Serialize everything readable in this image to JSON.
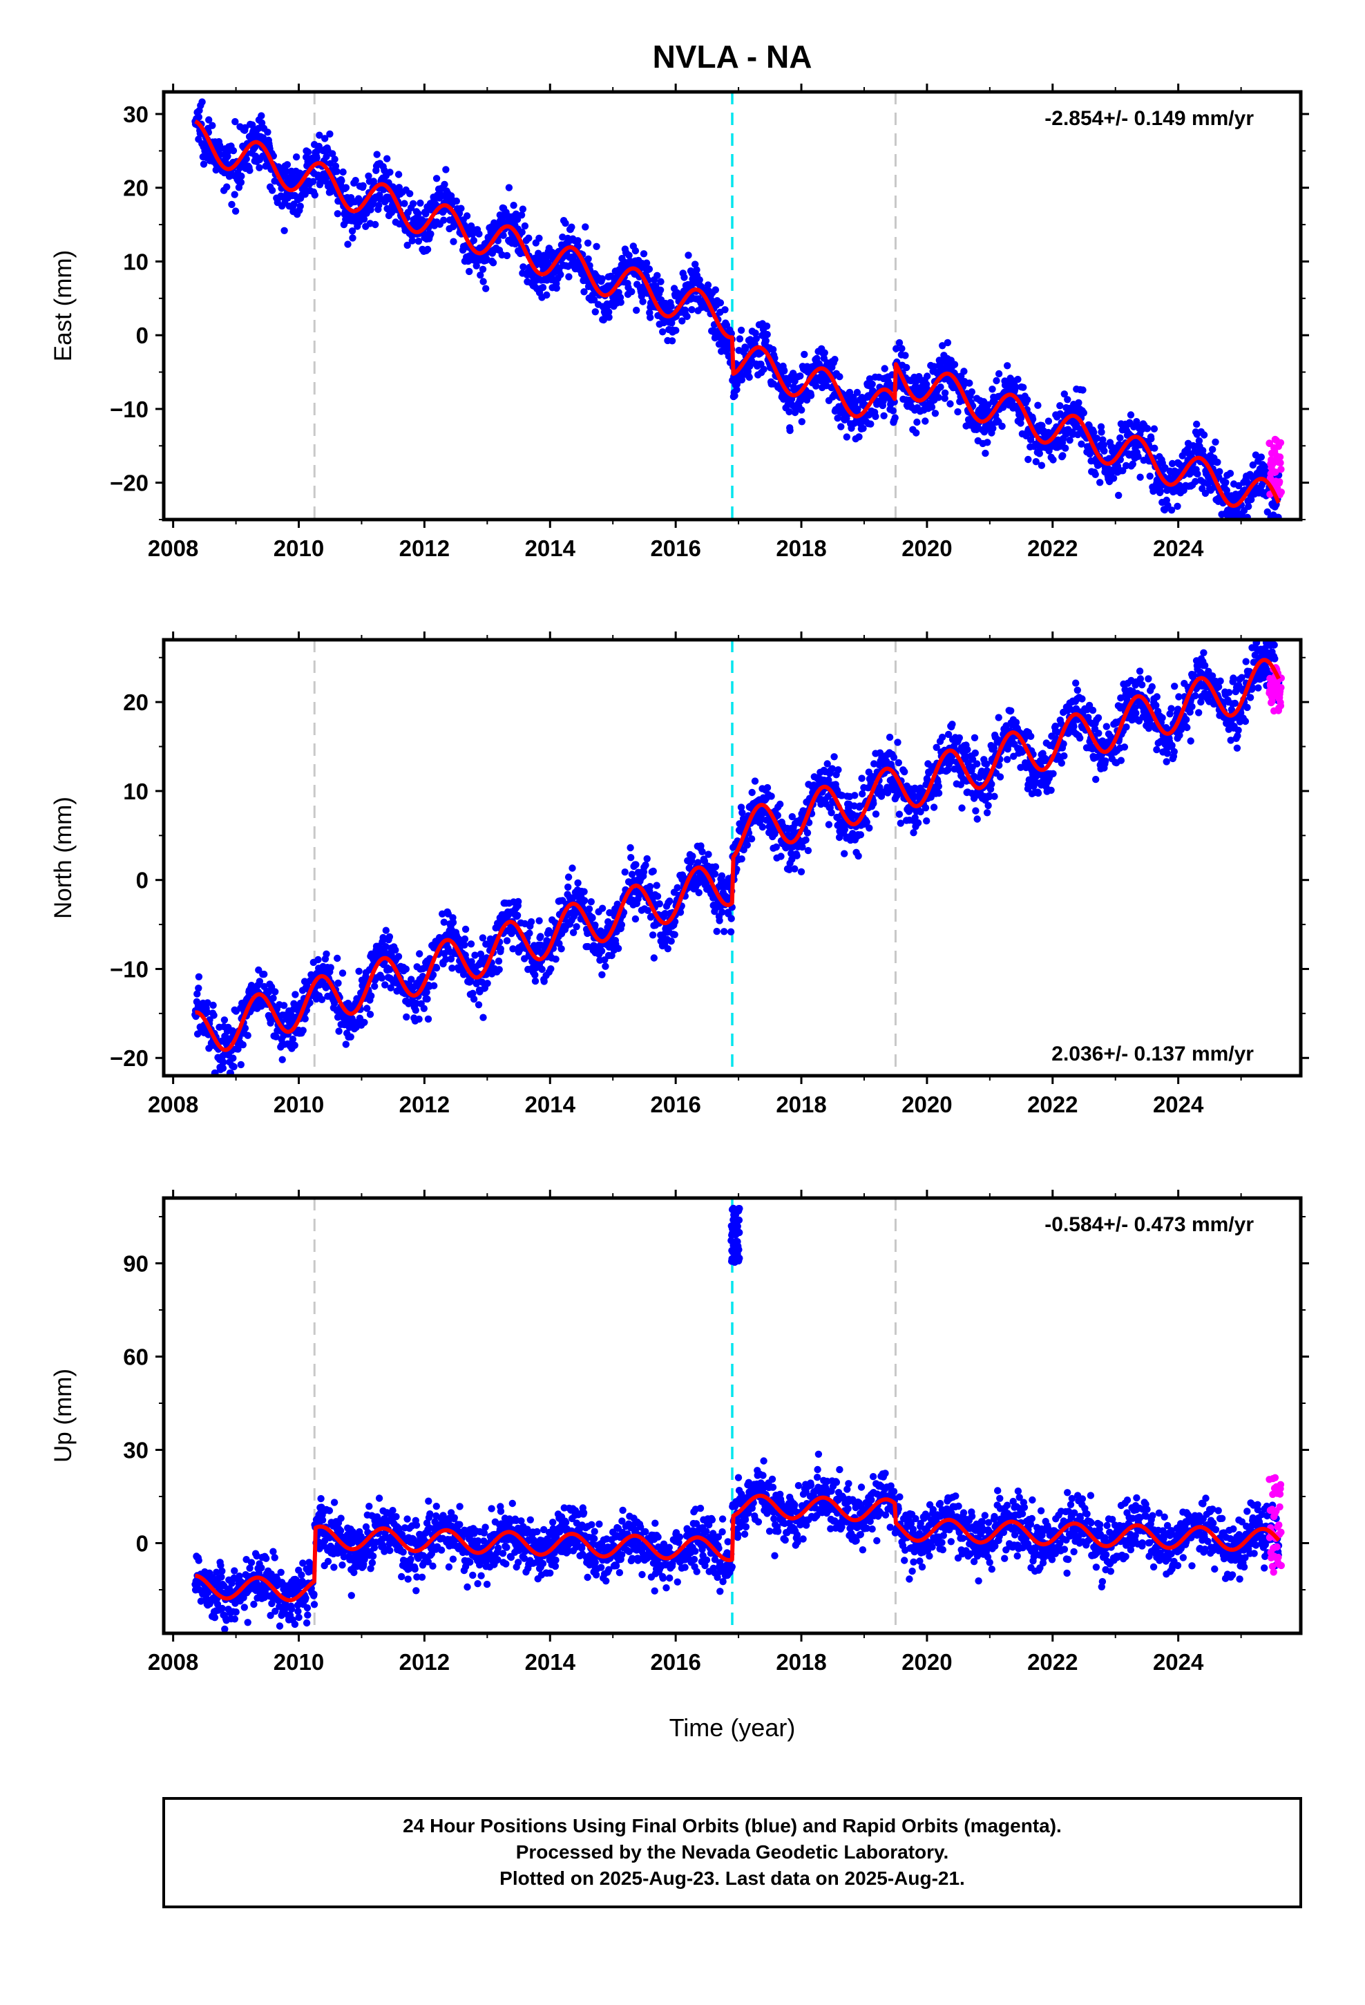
{
  "title": "NVLA - NA",
  "xlabel": "Time (year)",
  "x_ticks": [
    2008,
    2010,
    2012,
    2014,
    2016,
    2018,
    2020,
    2022,
    2024
  ],
  "footer": [
    "24 Hour Positions Using Final Orbits (blue) and Rapid Orbits (magenta).",
    "Processed by the Nevada Geodetic Laboratory.",
    "Plotted on 2025-Aug-23. Last data on 2025-Aug-21."
  ],
  "colors": {
    "final_orbits": "#0000ff",
    "rapid_orbits": "#ff00ff",
    "model": "#ff0000",
    "equipment_change": "#c8c8c8",
    "earthquake": "#00e5ee"
  },
  "chart_data": [
    {
      "type": "scatter",
      "name": "east",
      "ylabel": "East (mm)",
      "xlim": [
        2007.85,
        2025.95
      ],
      "ylim": [
        -25,
        33
      ],
      "y_ticks": [
        -20,
        -10,
        0,
        10,
        20,
        30
      ],
      "rate_label": "-2.854+/- 0.149 mm/yr",
      "rate_position": "top-right",
      "trend": {
        "start": 2008.35,
        "end": 2025.6,
        "y0": 26.5,
        "slope": -2.854,
        "amplitude": 2.5,
        "scatter": 1.8
      },
      "offsets": [
        {
          "year": 2016.9,
          "jump": -5
        },
        {
          "year": 2019.5,
          "jump": 5
        }
      ],
      "vertical_lines": [
        {
          "year": 2010.25,
          "kind": "equipment_change"
        },
        {
          "year": 2016.9,
          "kind": "earthquake"
        },
        {
          "year": 2019.5,
          "kind": "equipment_change"
        }
      ],
      "rapid": {
        "start": 2025.45,
        "end": 2025.64,
        "min": -22,
        "max": -14
      }
    },
    {
      "type": "scatter",
      "name": "north",
      "ylabel": "North (mm)",
      "xlim": [
        2007.85,
        2025.95
      ],
      "ylim": [
        -22,
        27
      ],
      "y_ticks": [
        -20,
        -10,
        0,
        10,
        20
      ],
      "rate_label": "2.036+/- 0.137 mm/yr",
      "rate_position": "bottom-right",
      "trend": {
        "start": 2008.35,
        "end": 2025.6,
        "y0": -17.5,
        "slope": 2.036,
        "amplitude": 2.6,
        "scatter": 1.6
      },
      "offsets": [
        {
          "year": 2016.9,
          "jump": 5
        }
      ],
      "vertical_lines": [
        {
          "year": 2010.25,
          "kind": "equipment_change"
        },
        {
          "year": 2016.9,
          "kind": "earthquake"
        },
        {
          "year": 2019.5,
          "kind": "equipment_change"
        }
      ],
      "rapid": {
        "start": 2025.45,
        "end": 2025.64,
        "min": 19,
        "max": 24
      }
    },
    {
      "type": "scatter",
      "name": "up",
      "ylabel": "Up (mm)",
      "xlim": [
        2007.85,
        2025.95
      ],
      "ylim": [
        -29,
        111
      ],
      "y_ticks": [
        0,
        30,
        60,
        90
      ],
      "rate_label": "-0.584+/- 0.473 mm/yr",
      "rate_position": "top-right",
      "trend": {
        "start": 2008.35,
        "end": 2025.6,
        "y0": -14,
        "slope": -0.584,
        "amplitude": 3.5,
        "scatter": 4.5
      },
      "offsets": [
        {
          "year": 2010.25,
          "jump": 17
        },
        {
          "year": 2016.9,
          "jump": 14
        },
        {
          "year": 2019.5,
          "jump": -6
        }
      ],
      "vertical_lines": [
        {
          "year": 2010.25,
          "kind": "equipment_change"
        },
        {
          "year": 2016.9,
          "kind": "earthquake"
        },
        {
          "year": 2019.5,
          "kind": "equipment_change"
        }
      ],
      "outliers": {
        "start": 2016.88,
        "end": 2017.02,
        "min": 90,
        "max": 108
      },
      "rapid": {
        "start": 2025.45,
        "end": 2025.64,
        "min": -10,
        "max": 22
      }
    }
  ]
}
